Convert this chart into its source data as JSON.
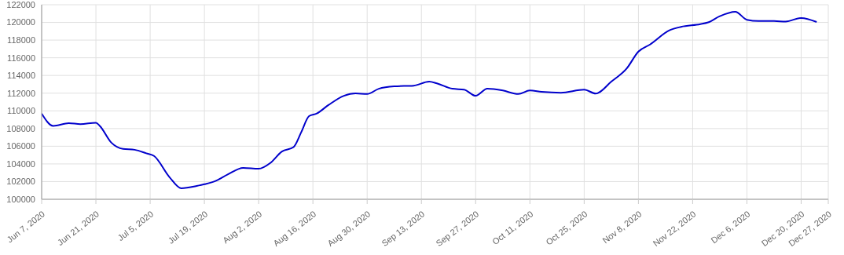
{
  "chart_data": {
    "type": "line",
    "x": [
      "2020-06-07",
      "2020-06-10",
      "2020-06-14",
      "2020-06-17",
      "2020-06-21",
      "2020-06-22",
      "2020-06-25",
      "2020-06-28",
      "2020-07-01",
      "2020-07-04",
      "2020-07-06",
      "2020-07-10",
      "2020-07-13",
      "2020-07-17",
      "2020-07-19",
      "2020-07-22",
      "2020-07-25",
      "2020-07-29",
      "2020-08-02",
      "2020-08-05",
      "2020-08-08",
      "2020-08-11",
      "2020-08-13",
      "2020-08-15",
      "2020-08-17",
      "2020-08-20",
      "2020-08-24",
      "2020-08-27",
      "2020-08-30",
      "2020-09-02",
      "2020-09-06",
      "2020-09-11",
      "2020-09-15",
      "2020-09-17",
      "2020-09-21",
      "2020-09-24",
      "2020-09-27",
      "2020-09-30",
      "2020-10-04",
      "2020-10-08",
      "2020-10-11",
      "2020-10-14",
      "2020-10-19",
      "2020-10-25",
      "2020-10-28",
      "2020-11-01",
      "2020-11-05",
      "2020-11-08",
      "2020-11-11",
      "2020-11-16",
      "2020-11-19",
      "2020-11-24",
      "2020-11-26",
      "2020-11-29",
      "2020-12-03",
      "2020-12-06",
      "2020-12-09",
      "2020-12-13",
      "2020-12-16",
      "2020-12-20",
      "2020-12-24"
    ],
    "series": [
      {
        "color": "#0000cc",
        "values": [
          109700,
          108300,
          108600,
          108500,
          108650,
          108300,
          106400,
          105700,
          105600,
          105200,
          104900,
          102500,
          101250,
          101500,
          101700,
          102100,
          102800,
          103550,
          103450,
          104100,
          105400,
          105900,
          107600,
          109400,
          109700,
          110650,
          111700,
          111970,
          111900,
          112500,
          112770,
          112850,
          113300,
          113100,
          112500,
          112400,
          111700,
          112500,
          112300,
          111900,
          112300,
          112150,
          112050,
          112400,
          111950,
          113300,
          114800,
          116700,
          117500,
          119100,
          119500,
          119800,
          120000,
          120700,
          121200,
          120300,
          120150,
          120150,
          120100,
          120500,
          120050
        ]
      }
    ],
    "xlim": [
      "2020-06-07",
      "2020-12-27"
    ],
    "xticks": [
      {
        "value": "2020-06-07",
        "label": "Jun 7, 2020"
      },
      {
        "value": "2020-06-21",
        "label": "Jun 21, 2020"
      },
      {
        "value": "2020-07-05",
        "label": "Jul 5, 2020"
      },
      {
        "value": "2020-07-19",
        "label": "Jul 19, 2020"
      },
      {
        "value": "2020-08-02",
        "label": "Aug 2, 2020"
      },
      {
        "value": "2020-08-16",
        "label": "Aug 16, 2020"
      },
      {
        "value": "2020-08-30",
        "label": "Aug 30, 2020"
      },
      {
        "value": "2020-09-13",
        "label": "Sep 13, 2020"
      },
      {
        "value": "2020-09-27",
        "label": "Sep 27, 2020"
      },
      {
        "value": "2020-10-11",
        "label": "Oct 11, 2020"
      },
      {
        "value": "2020-10-25",
        "label": "Oct 25, 2020"
      },
      {
        "value": "2020-11-08",
        "label": "Nov 8, 2020"
      },
      {
        "value": "2020-11-22",
        "label": "Nov 22, 2020"
      },
      {
        "value": "2020-12-06",
        "label": "Dec 6, 2020"
      },
      {
        "value": "2020-12-20",
        "label": "Dec 20, 2020"
      },
      {
        "value": "2020-12-27",
        "label": "Dec 27, 2020"
      }
    ],
    "ylim": [
      100000,
      122000
    ],
    "yticks": [
      100000,
      102000,
      104000,
      106000,
      108000,
      110000,
      112000,
      114000,
      116000,
      118000,
      120000,
      122000
    ],
    "grid": true,
    "marker": "none",
    "line_style": "solid",
    "legend": false
  }
}
